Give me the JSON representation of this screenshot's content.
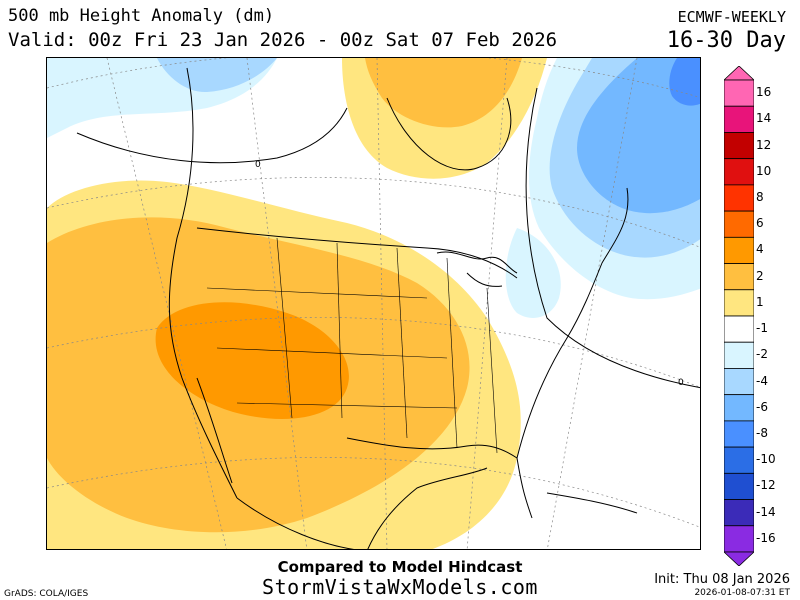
{
  "header": {
    "title": "500 mb Height Anomaly (dm)",
    "valid": "Valid: 00z Fri 23 Jan 2026 - 00z Sat 07 Feb 2026",
    "model": "ECMWF-WEEKLY",
    "range": "16-30 Day"
  },
  "map": {
    "contour_labels": [
      "0",
      "0"
    ]
  },
  "legend": {
    "labels": [
      "16",
      "14",
      "12",
      "10",
      "8",
      "6",
      "4",
      "2",
      "1",
      "-1",
      "-2",
      "-4",
      "-6",
      "-8",
      "-10",
      "-12",
      "-14",
      "-16"
    ],
    "colors": [
      "#ff66b3",
      "#e8147a",
      "#c20000",
      "#e01010",
      "#ff3300",
      "#ff6a00",
      "#ff9900",
      "#ffbf40",
      "#ffe680",
      "#ffffff",
      "#d9f5ff",
      "#a8d8ff",
      "#73b8ff",
      "#4a90ff",
      "#2b6ee6",
      "#1f4fd1",
      "#3b2bb8",
      "#8a2be2"
    ]
  },
  "footer": {
    "compared": "Compared to Model Hindcast",
    "site": "StormVistaWxModels.com",
    "credit": "GrADS: COLA/IGES",
    "init": "Init: Thu 08 Jan 2026",
    "stamp": "2026-01-08-07:31 ET"
  }
}
